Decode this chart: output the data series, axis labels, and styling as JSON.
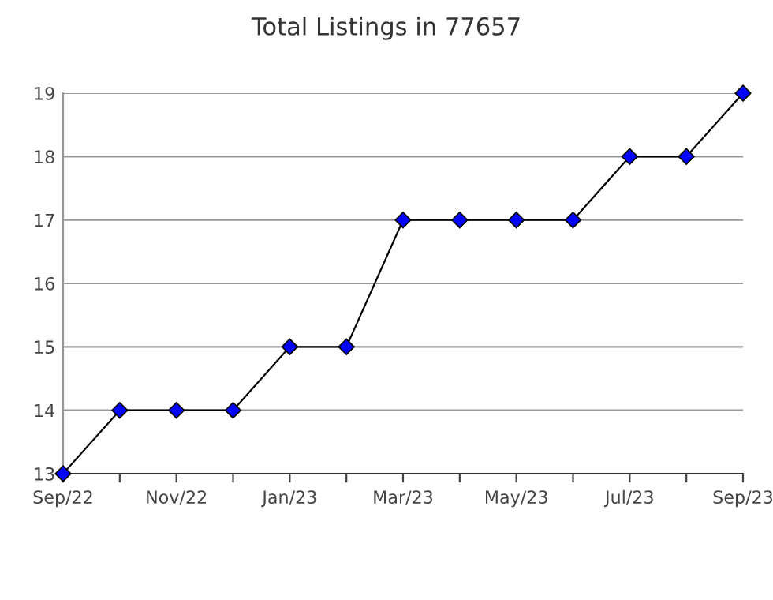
{
  "chart_data": {
    "type": "line",
    "title": "Total Listings in 77657",
    "categories": [
      "Sep/22",
      null,
      "Nov/22",
      null,
      "Jan/23",
      null,
      "Mar/23",
      null,
      "May/23",
      null,
      "Jul/23",
      null,
      "Sep/23"
    ],
    "series": [
      {
        "color": "#0000ff",
        "values": [
          13,
          14,
          14,
          14,
          15,
          15,
          17,
          17,
          17,
          17,
          18,
          18,
          19
        ]
      }
    ],
    "ylim": [
      13,
      19
    ],
    "yticks": [
      13,
      14,
      15,
      16,
      17,
      18,
      19
    ],
    "grid": "y",
    "marker": "diamond",
    "line_style": "solid"
  }
}
